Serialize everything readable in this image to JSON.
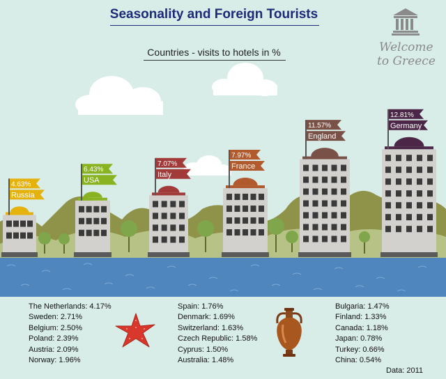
{
  "title": "Seasonality and Foreign Tourists",
  "subtitle": "Countries - visits to hotels in %",
  "welcome": {
    "line1": "Welcome",
    "line2": "to Greece"
  },
  "source": "Data: 2011",
  "colors": {
    "sky": "#d8ece8",
    "sea": "#4f86bd",
    "title": "#1d2a7a",
    "building": "#d2d1ce",
    "window": "#3a3a3a"
  },
  "icons": {
    "logo": "temple-icon",
    "starfish": "starfish-icon",
    "amphora": "amphora-icon"
  },
  "chart_data": {
    "type": "bar",
    "title": "Seasonality and Foreign Tourists",
    "subtitle": "Countries - visits to hotels in %",
    "categories": [
      "Russia",
      "USA",
      "Italy",
      "France",
      "England",
      "Germany"
    ],
    "values": [
      4.63,
      6.43,
      7.07,
      7.97,
      11.57,
      12.81
    ],
    "value_labels": [
      "4.63%",
      "6.43%",
      "7.07%",
      "7.97%",
      "11.57%",
      "12.81%"
    ],
    "bar_colors": [
      "#e5b20c",
      "#8ab321",
      "#a23a3a",
      "#b15a2d",
      "#7a5146",
      "#4c2646"
    ],
    "ylim": [
      0,
      13
    ],
    "grid": false,
    "legend": "none"
  },
  "other_countries": [
    [
      "The Netherlands: 4.17%",
      "Sweden: 2.71%",
      "Belgium: 2.50%",
      "Poland: 2.39%",
      "Austria: 2.09%",
      "Norway: 1.96%"
    ],
    [
      "Spain: 1.76%",
      "Denmark: 1.69%",
      "Switzerland: 1.63%",
      "Czech Republic: 1.58%",
      "Cyprus: 1.50%",
      "Australia: 1.48%"
    ],
    [
      "Bulgaria: 1.47%",
      "Finland: 1.33%",
      "Canada: 1.18%",
      "Japan: 0.78%",
      "Turkey: 0.66%",
      "China: 0.54%"
    ]
  ]
}
